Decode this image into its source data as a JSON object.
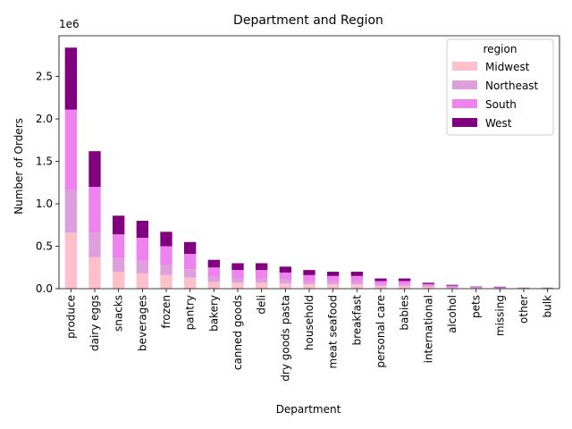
{
  "chart_data": {
    "type": "bar",
    "stacked": true,
    "title": "Department and  Region",
    "xlabel": "Department",
    "ylabel": "Number of Orders",
    "y_offset_label": "1e6",
    "ylim": [
      0,
      2.98
    ],
    "yticks": [
      0.0,
      0.5,
      1.0,
      1.5,
      2.0,
      2.5
    ],
    "ytick_labels": [
      "0.0",
      "0.5",
      "1.0",
      "1.5",
      "2.0",
      "2.5"
    ],
    "y_units": "millions of orders",
    "grid": false,
    "legend": {
      "title": "region",
      "placement": "top-right"
    },
    "categories": [
      "produce",
      "dairy eggs",
      "snacks",
      "beverages",
      "frozen",
      "pantry",
      "bakery",
      "canned goods",
      "deli",
      "dry goods pasta",
      "household",
      "meat seafood",
      "breakfast",
      "personal care",
      "babies",
      "international",
      "alcohol",
      "pets",
      "missing",
      "other",
      "bulk"
    ],
    "series": [
      {
        "name": "Midwest",
        "color": "#ffc0cb",
        "values": [
          0.66,
          0.37,
          0.2,
          0.18,
          0.16,
          0.13,
          0.08,
          0.07,
          0.07,
          0.06,
          0.05,
          0.05,
          0.05,
          0.03,
          0.03,
          0.02,
          0.01,
          0.007,
          0.005,
          0.003,
          0.003
        ]
      },
      {
        "name": "Northeast",
        "color": "#dda0dd",
        "values": [
          0.5,
          0.29,
          0.16,
          0.15,
          0.12,
          0.1,
          0.06,
          0.05,
          0.05,
          0.05,
          0.04,
          0.04,
          0.04,
          0.02,
          0.02,
          0.015,
          0.01,
          0.005,
          0.005,
          0.002,
          0.002
        ]
      },
      {
        "name": "South",
        "color": "#ee82ee",
        "values": [
          0.95,
          0.54,
          0.28,
          0.27,
          0.22,
          0.18,
          0.11,
          0.1,
          0.1,
          0.08,
          0.07,
          0.06,
          0.06,
          0.04,
          0.04,
          0.02,
          0.015,
          0.007,
          0.007,
          0.004,
          0.004
        ]
      },
      {
        "name": "West",
        "color": "#800080",
        "values": [
          0.73,
          0.42,
          0.22,
          0.2,
          0.17,
          0.14,
          0.09,
          0.08,
          0.08,
          0.07,
          0.06,
          0.05,
          0.05,
          0.03,
          0.03,
          0.015,
          0.01,
          0.006,
          0.006,
          0.003,
          0.003
        ]
      }
    ]
  }
}
